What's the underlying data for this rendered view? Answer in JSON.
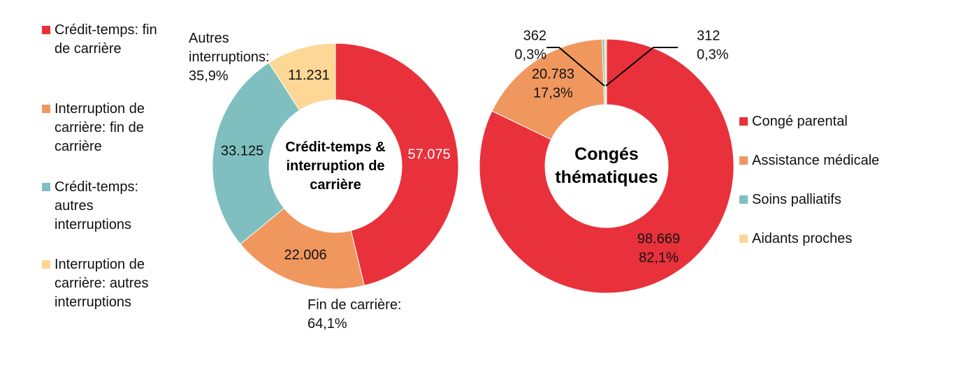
{
  "chart_data": [
    {
      "type": "donut",
      "title": "Crédit-temps & interruption de carrière",
      "categories": [
        "Crédit-temps: fin de carrière",
        "Interruption de carrière: fin de carrière",
        "Crédit-temps: autres interruptions",
        "Interruption de carrière: autres interruptions"
      ],
      "values": [
        57075,
        22006,
        33125,
        11231
      ],
      "value_labels": [
        "57.075",
        "22.006",
        "33.125",
        "11.231"
      ],
      "colors": [
        "#e8313a",
        "#f0975e",
        "#7fbfbf",
        "#fdd795"
      ],
      "annotations": [
        "Autres interruptions: 35,9%",
        "Fin de carrière: 64,1%"
      ],
      "legend": "left"
    },
    {
      "type": "donut",
      "title": "Congés thématiques",
      "categories": [
        "Congé parental",
        "Assistance médicale",
        "Soins palliatifs",
        "Aidants proches"
      ],
      "values": [
        98669,
        20783,
        362,
        312
      ],
      "value_labels": [
        "98.669",
        "20.783",
        "362",
        "312"
      ],
      "percents": [
        82.1,
        17.3,
        0.3,
        0.3
      ],
      "percent_labels": [
        "82,1%",
        "17,3%",
        "0,3%",
        "0,3%"
      ],
      "colors": [
        "#e8313a",
        "#f0975e",
        "#7fbfbf",
        "#fdd795"
      ],
      "legend": "right"
    }
  ]
}
